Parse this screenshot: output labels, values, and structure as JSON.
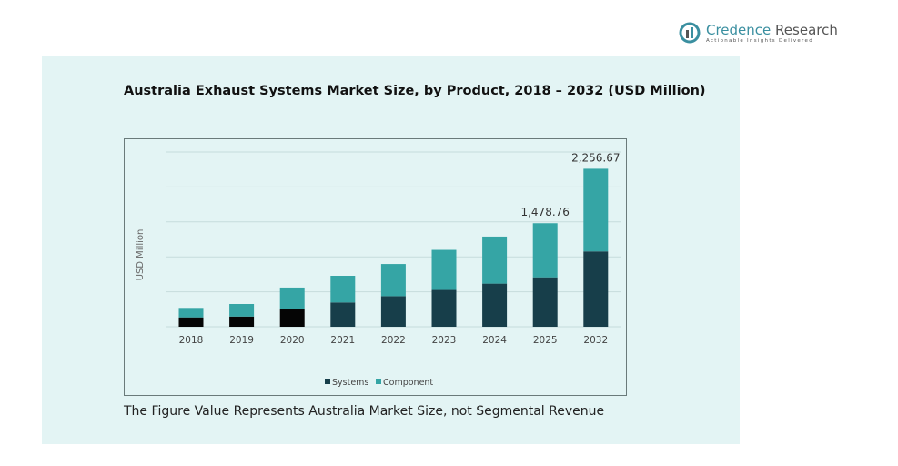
{
  "logo": {
    "name": "Credence",
    "name2": " Research",
    "tagline": "Actionable Insights Delivered"
  },
  "footnote": "The Figure Value Represents Australia Market Size, not Segmental Revenue",
  "colors": {
    "systems": "#173e4a",
    "systems_early": "#050505",
    "component": "#35a5a5",
    "grid": "#c6dcdc"
  },
  "chart_data": {
    "type": "bar",
    "stacked": true,
    "title": "Australia Exhaust Systems Market Size, by Product, 2018 – 2032 (USD Million)",
    "xlabel": "",
    "ylabel": "USD Million",
    "ylim": [
      0,
      2600
    ],
    "grid": true,
    "legend": "bottom",
    "categories": [
      "2018",
      "2019",
      "2020",
      "2021",
      "2022",
      "2023",
      "2024",
      "2025",
      "2032"
    ],
    "series": [
      {
        "name": "Systems",
        "values": [
          134,
          146,
          258,
          347,
          437,
          526,
          616,
          706,
          1076
        ]
      },
      {
        "name": "Component",
        "values": [
          135,
          179,
          302,
          381,
          459,
          572,
          672,
          772.76,
          1180.67
        ]
      }
    ],
    "data_labels": {
      "2025": "1,478.76",
      "2032": "2,256.67"
    }
  }
}
